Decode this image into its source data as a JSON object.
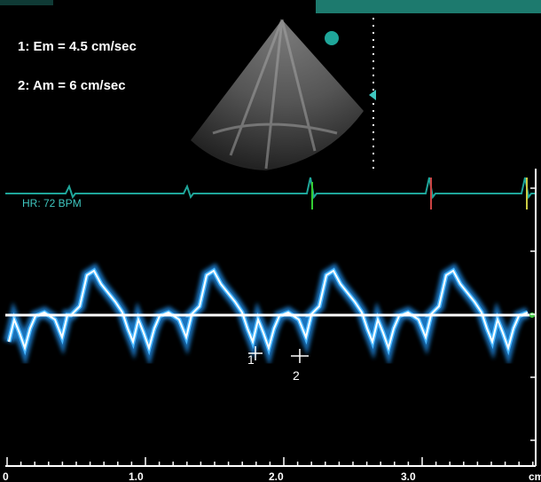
{
  "measurements": [
    "1: Em = 4.5 cm/sec",
    "2: Am = 6 cm/sec"
  ],
  "ecg_label": "HR: 72 BPM",
  "markers": [
    "1",
    "2"
  ],
  "depth_axis": {
    "labels": [
      "0",
      "1.0",
      "2.0",
      "3.0",
      "cm"
    ]
  }
}
